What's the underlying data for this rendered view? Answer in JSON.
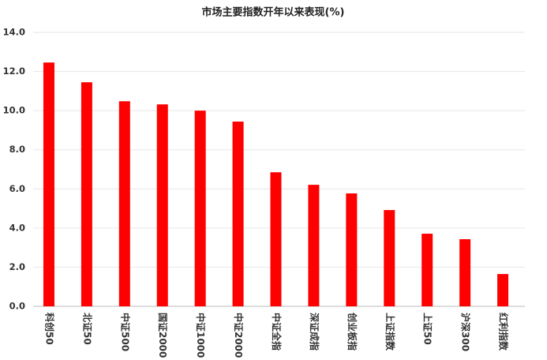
{
  "chart_data": {
    "type": "bar",
    "title": "市场主要指数开年以来表现(%)",
    "categories": [
      "科创50",
      "北证50",
      "中证500",
      "国证2000",
      "中证1000",
      "中证2000",
      "中证全指",
      "深证成指",
      "创业板指",
      "上证指数",
      "上证50",
      "沪深300",
      "红利指数"
    ],
    "values": [
      12.46,
      11.45,
      10.48,
      10.32,
      10.0,
      9.44,
      6.85,
      6.21,
      5.77,
      4.92,
      3.71,
      3.43,
      1.65
    ],
    "color": "#ff0000",
    "ylim": [
      0,
      14
    ],
    "yticks": [
      {
        "value": 0,
        "label": "0.0"
      },
      {
        "value": 2,
        "label": "2.0"
      },
      {
        "value": 4,
        "label": "4.0"
      },
      {
        "value": 6,
        "label": "6.0"
      },
      {
        "value": 8,
        "label": "8.0"
      },
      {
        "value": 10,
        "label": "10.0"
      },
      {
        "value": 12,
        "label": "12.0"
      },
      {
        "value": 14,
        "label": "14.0"
      }
    ],
    "grid": true
  }
}
